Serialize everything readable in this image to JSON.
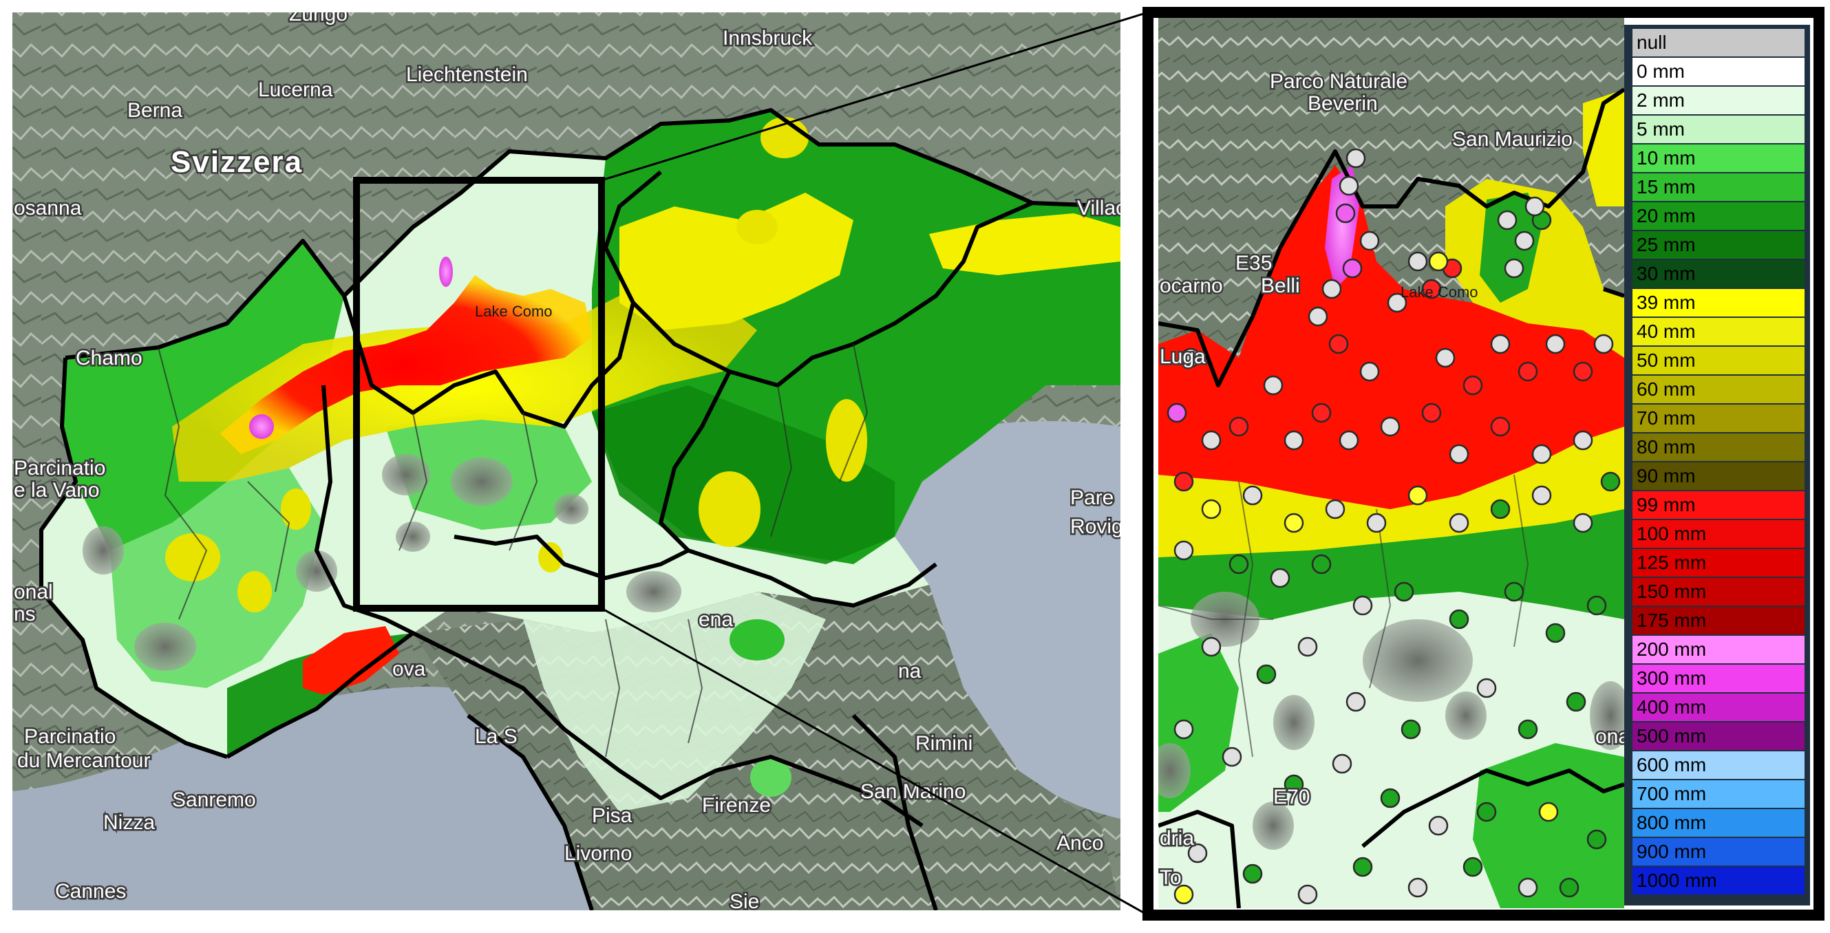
{
  "map_left": {
    "places": [
      {
        "id": "zurigo",
        "text": "Zurigo"
      },
      {
        "id": "innsbruck",
        "text": "Innsbruck"
      },
      {
        "id": "liechtenstein",
        "text": "Liechtenstein"
      },
      {
        "id": "lucerna",
        "text": "Lucerna"
      },
      {
        "id": "berna",
        "text": "Berna"
      },
      {
        "id": "svizzera",
        "text": "Svizzera"
      },
      {
        "id": "losanna",
        "text": "osanna"
      },
      {
        "id": "villach",
        "text": "Villac"
      },
      {
        "id": "lake-como",
        "text": "Lake Como"
      },
      {
        "id": "parco-vanoise",
        "text": "Parcinatio"
      },
      {
        "id": "de-la-vanoise",
        "text": "e la Vano"
      },
      {
        "id": "onal",
        "text": "onal"
      },
      {
        "id": "ns",
        "text": "ns"
      },
      {
        "id": "parco-mercantour",
        "text": "Parcinatio"
      },
      {
        "id": "du-mercantour",
        "text": "du Mercantour"
      },
      {
        "id": "nizza",
        "text": "Nizza"
      },
      {
        "id": "cannes",
        "text": "Cannes"
      },
      {
        "id": "sanremo",
        "text": "Sanremo"
      },
      {
        "id": "genova",
        "text": "ova"
      },
      {
        "id": "la-spezia",
        "text": "La S"
      },
      {
        "id": "pisa",
        "text": "Pisa"
      },
      {
        "id": "firenze",
        "text": "Firenze"
      },
      {
        "id": "livorno",
        "text": "Livorno"
      },
      {
        "id": "siena",
        "text": "Sie"
      },
      {
        "id": "rimini",
        "text": "Rimini"
      },
      {
        "id": "san-marino",
        "text": "San Marino"
      },
      {
        "id": "ancona",
        "text": "Anco"
      },
      {
        "id": "parenzo",
        "text": "Pare"
      },
      {
        "id": "rovigno",
        "text": "Rovig"
      },
      {
        "id": "modena",
        "text": "ena"
      },
      {
        "id": "ravenna",
        "text": "na"
      },
      {
        "id": "chamonix",
        "text": "Chamo"
      }
    ]
  },
  "map_right": {
    "places": [
      {
        "id": "parco-beverin-1",
        "text": "Parco Naturale"
      },
      {
        "id": "parco-beverin-2",
        "text": "Beverin"
      },
      {
        "id": "san-maurizio",
        "text": "San Maurizio"
      },
      {
        "id": "e35",
        "text": "E35"
      },
      {
        "id": "locarno",
        "text": "ocarno"
      },
      {
        "id": "bellinzona",
        "text": "Belli"
      },
      {
        "id": "lake-como-zoom",
        "text": "Lake Como"
      },
      {
        "id": "lugano",
        "text": "Luga"
      },
      {
        "id": "e70",
        "text": "E70"
      },
      {
        "id": "lodi",
        "text": "dria"
      },
      {
        "id": "torino",
        "text": "To"
      },
      {
        "id": "ona",
        "text": "ona"
      }
    ]
  },
  "legend": {
    "items": [
      {
        "label": "null",
        "color": "#c8c8c8"
      },
      {
        "label": "0 mm",
        "color": "#ffffff"
      },
      {
        "label": "2 mm",
        "color": "#e6fbe6"
      },
      {
        "label": "5 mm",
        "color": "#c6f5c6"
      },
      {
        "label": "10 mm",
        "color": "#4fe04f"
      },
      {
        "label": "15 mm",
        "color": "#2fbf2f"
      },
      {
        "label": "20 mm",
        "color": "#189a18"
      },
      {
        "label": "25 mm",
        "color": "#0e7a0e"
      },
      {
        "label": "30 mm",
        "color": "#0a4d16"
      },
      {
        "label": "39 mm",
        "color": "#ffff00"
      },
      {
        "label": "40 mm",
        "color": "#efef0c"
      },
      {
        "label": "50 mm",
        "color": "#d8d800"
      },
      {
        "label": "60 mm",
        "color": "#bdb800"
      },
      {
        "label": "70 mm",
        "color": "#a29a00"
      },
      {
        "label": "80 mm",
        "color": "#7d7600"
      },
      {
        "label": "90 mm",
        "color": "#5a5200"
      },
      {
        "label": "99 mm",
        "color": "#ff1010"
      },
      {
        "label": "100 mm",
        "color": "#f00808"
      },
      {
        "label": "125 mm",
        "color": "#e00000"
      },
      {
        "label": "150 mm",
        "color": "#c80000"
      },
      {
        "label": "175 mm",
        "color": "#a80000"
      },
      {
        "label": "200 mm",
        "color": "#ff88ff"
      },
      {
        "label": "300 mm",
        "color": "#f040f0"
      },
      {
        "label": "400 mm",
        "color": "#cc20cc"
      },
      {
        "label": "500 mm",
        "color": "#8a0a8a"
      },
      {
        "label": "600 mm",
        "color": "#9fd4ff"
      },
      {
        "label": "700 mm",
        "color": "#5ab8ff"
      },
      {
        "label": "800 mm",
        "color": "#2a92f0"
      },
      {
        "label": "900 mm",
        "color": "#1a5ee8"
      },
      {
        "label": "1000 mm",
        "color": "#0a1ed8"
      }
    ]
  }
}
